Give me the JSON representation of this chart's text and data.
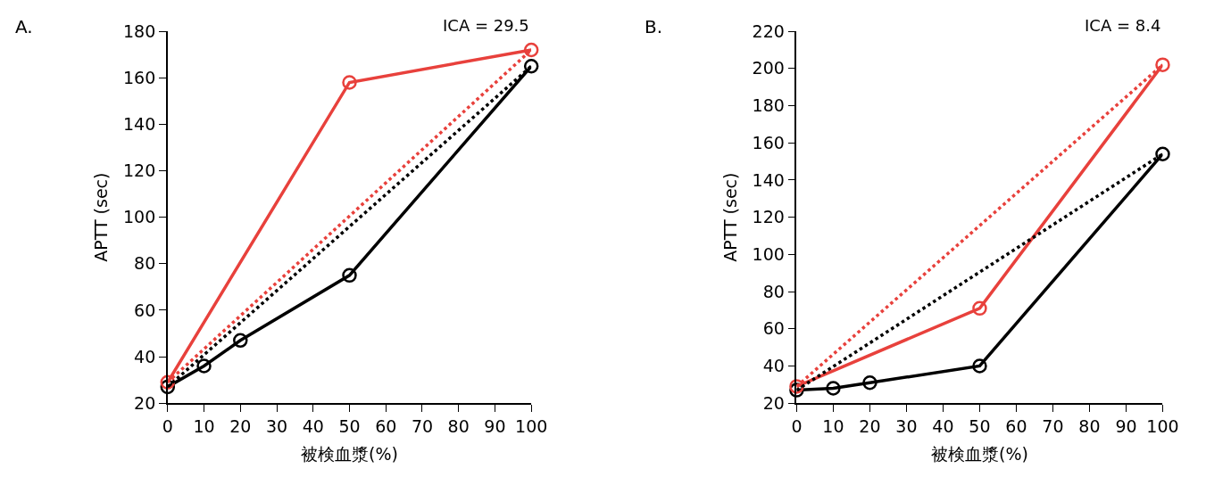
{
  "chart_data": [
    {
      "type": "line",
      "title": "A.",
      "xlabel": "被検血漿(%)",
      "ylabel": "APTT (sec)",
      "annotations": [
        "ICA = 29.5"
      ],
      "xlim": [
        0,
        100
      ],
      "xticks": [
        0,
        10,
        20,
        30,
        40,
        50,
        60,
        70,
        80,
        90,
        100
      ],
      "ylim": [
        20,
        180
      ],
      "yticks": [
        20,
        40,
        60,
        80,
        100,
        120,
        140,
        160,
        180
      ],
      "series": [
        {
          "color": "#000000",
          "x": [
            0,
            10,
            20,
            50,
            100
          ],
          "values": [
            27,
            36,
            47,
            75,
            165
          ],
          "marker": "circle",
          "line_style": "solid"
        },
        {
          "color": "#e8413c",
          "x": [
            0,
            50,
            100
          ],
          "values": [
            29,
            158,
            172
          ],
          "marker": "circle",
          "line_style": "solid"
        },
        {
          "color": "#000000",
          "x": [
            0,
            100
          ],
          "values": [
            27,
            165
          ],
          "marker": "none",
          "line_style": "dotted"
        },
        {
          "color": "#e8413c",
          "x": [
            0,
            100
          ],
          "values": [
            29,
            172
          ],
          "marker": "none",
          "line_style": "dotted"
        }
      ]
    },
    {
      "type": "line",
      "title": "B.",
      "xlabel": "被検血漿(%)",
      "ylabel": "APTT (sec)",
      "annotations": [
        "ICA = 8.4"
      ],
      "xlim": [
        0,
        100
      ],
      "xticks": [
        0,
        10,
        20,
        30,
        40,
        50,
        60,
        70,
        80,
        90,
        100
      ],
      "ylim": [
        20,
        220
      ],
      "yticks": [
        20,
        40,
        60,
        80,
        100,
        120,
        140,
        160,
        180,
        200,
        220
      ],
      "series": [
        {
          "color": "#000000",
          "x": [
            0,
            10,
            20,
            50,
            100
          ],
          "values": [
            27,
            28,
            31,
            40,
            154
          ],
          "marker": "circle",
          "line_style": "solid"
        },
        {
          "color": "#e8413c",
          "x": [
            0,
            50,
            100
          ],
          "values": [
            29,
            71,
            202
          ],
          "marker": "circle",
          "line_style": "solid"
        },
        {
          "color": "#000000",
          "x": [
            0,
            100
          ],
          "values": [
            27,
            154
          ],
          "marker": "none",
          "line_style": "dotted"
        },
        {
          "color": "#e8413c",
          "x": [
            0,
            100
          ],
          "values": [
            29,
            202
          ],
          "marker": "none",
          "line_style": "dotted"
        }
      ]
    }
  ]
}
